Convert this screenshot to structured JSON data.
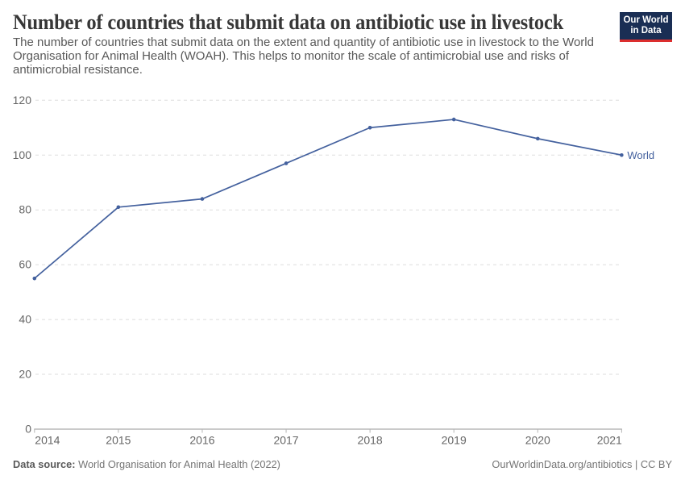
{
  "header": {
    "title": "Number of countries that submit data on antibiotic use in livestock",
    "subtitle": "The number of countries that submit data on the extent and quantity of antibiotic use in livestock to the World Organisation for Animal Health (WOAH). This helps to monitor the scale of antimicrobial use and risks of antimicrobial resistance."
  },
  "logo": {
    "line1": "Our World",
    "line2": "in Data",
    "background_color": "#1a2e54",
    "stripe_color": "#dc2e2e"
  },
  "chart_data": {
    "type": "line",
    "title": "Number of countries that submit data on antibiotic use in livestock",
    "categories": [
      2014,
      2015,
      2016,
      2017,
      2018,
      2019,
      2020,
      2021
    ],
    "series": [
      {
        "name": "World",
        "values": [
          55,
          81,
          84,
          97,
          110,
          113,
          106,
          100
        ],
        "color": "#44619e"
      }
    ],
    "xlabel": "",
    "ylabel": "",
    "ylim": [
      0,
      120
    ],
    "yticks": [
      0,
      20,
      40,
      60,
      80,
      100,
      120
    ],
    "grid": "dashed horizontal gridlines",
    "legend_position": "end-of-line label"
  },
  "footer": {
    "source_label": "Data source:",
    "source_value": "World Organisation for Animal Health (2022)",
    "license": "OurWorldinData.org/antibiotics | CC BY"
  },
  "colors": {
    "line": "#44619e",
    "gridline": "#dedede",
    "axis": "#949494",
    "tick": "#b5b5b5",
    "tick_label": "#666666",
    "title": "#373737",
    "subtitle": "#595959",
    "footer": "#757575"
  }
}
